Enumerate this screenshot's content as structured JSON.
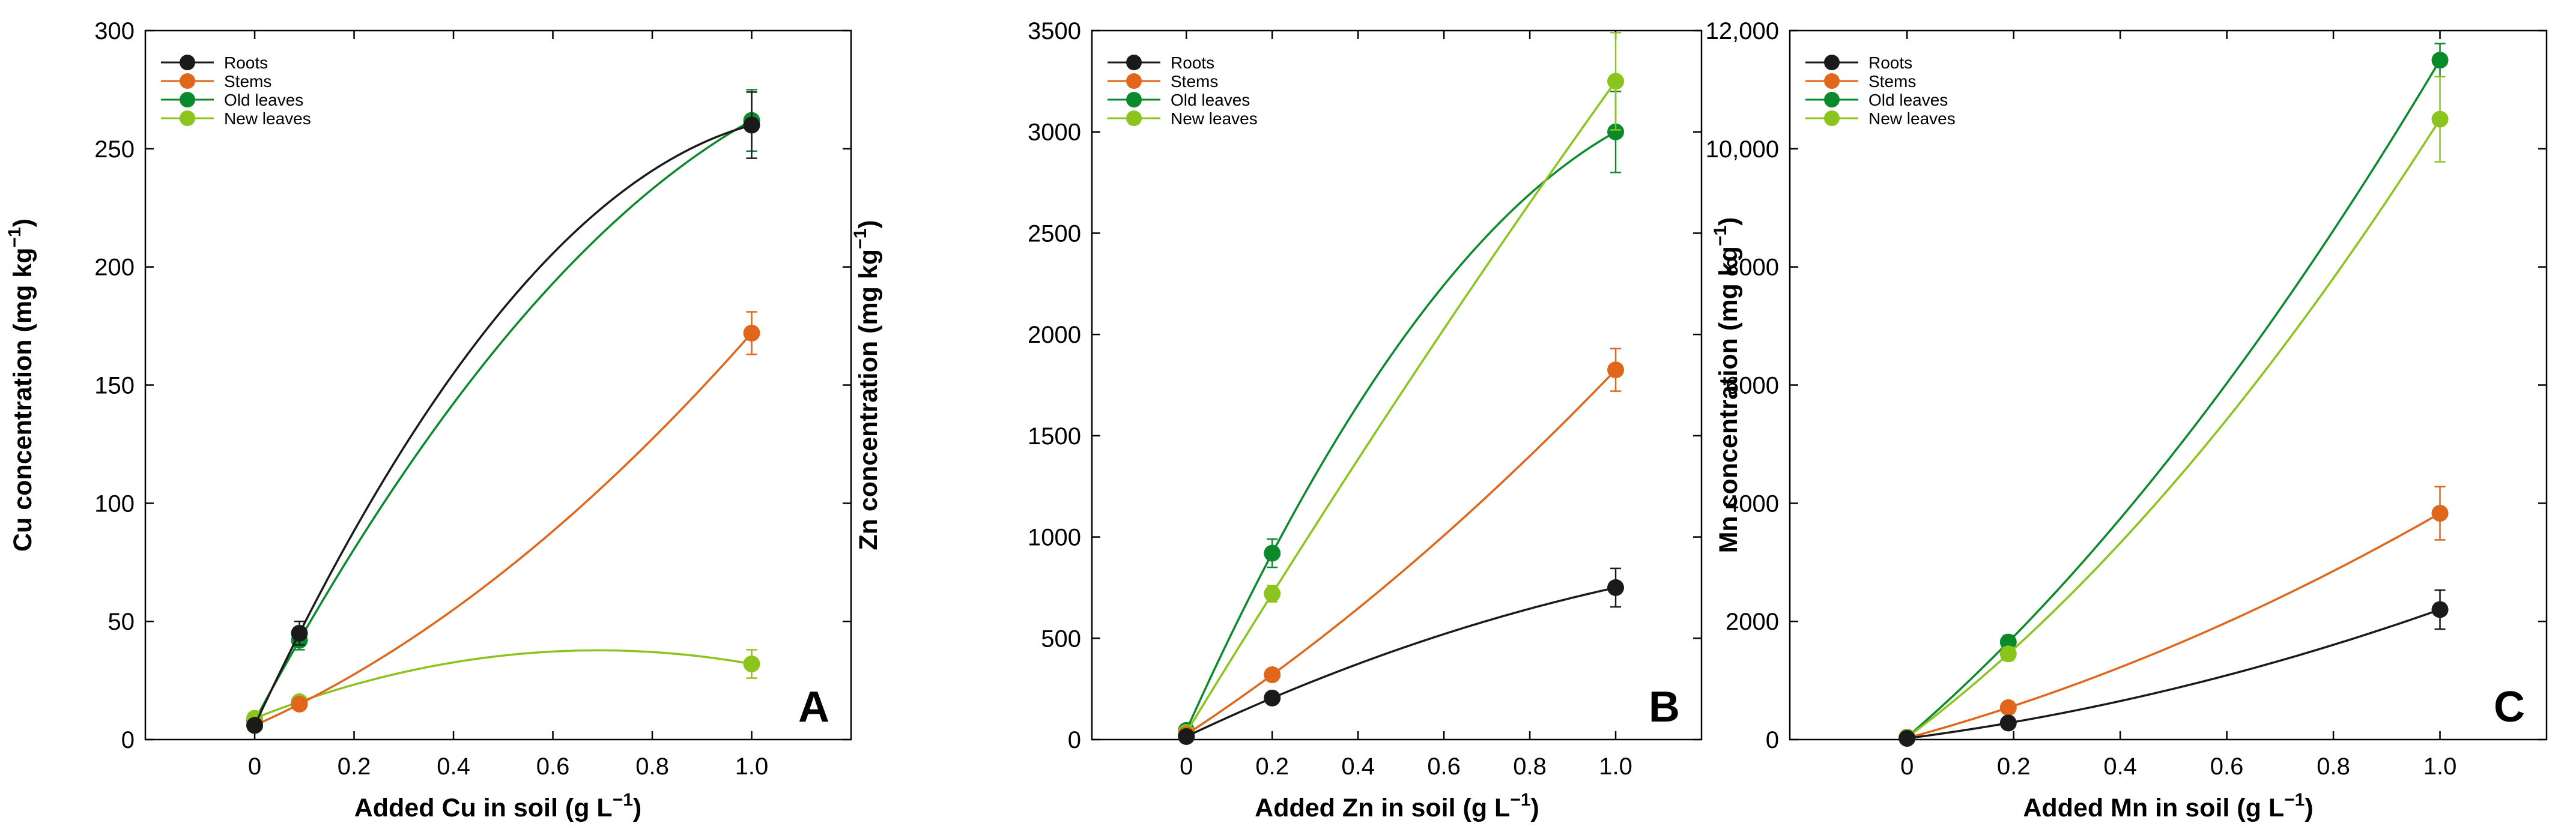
{
  "colors": {
    "Roots": "#1a1a1a",
    "Stems": "#e0661c",
    "Old leaves": "#0a8a2a",
    "New leaves": "#8cc41e"
  },
  "chart_data": [
    {
      "type": "line",
      "panel": "A",
      "xlabel_main": "Added Cu in soil (g L",
      "xlabel_exp": "−1",
      "xlabel_close": ")",
      "ylabel_main": "Cu concentration (mg kg",
      "ylabel_exp": "−1",
      "ylabel_close": ")",
      "xlim": [
        -0.22,
        1.2
      ],
      "ylim": [
        0,
        300
      ],
      "xticks": [
        0,
        0.2,
        0.4,
        0.6,
        0.8,
        1.0
      ],
      "xtick_labels": [
        "0",
        "0.2",
        "0.4",
        "0.6",
        "0.8",
        "1.0"
      ],
      "yticks": [
        0,
        50,
        100,
        150,
        200,
        250,
        300
      ],
      "ytick_labels": [
        "0",
        "50",
        "100",
        "150",
        "200",
        "250",
        "300"
      ],
      "x": [
        0,
        0.09,
        1.0
      ],
      "series": [
        {
          "name": "Roots",
          "values": [
            6,
            45,
            260
          ],
          "errors": [
            1,
            5,
            14
          ]
        },
        {
          "name": "Stems",
          "values": [
            6,
            15,
            172
          ],
          "errors": [
            1,
            2,
            9
          ]
        },
        {
          "name": "Old leaves",
          "values": [
            8,
            42,
            262
          ],
          "errors": [
            1,
            4,
            13
          ]
        },
        {
          "name": "New leaves",
          "values": [
            9,
            16,
            32
          ],
          "errors": [
            1,
            2,
            6
          ]
        }
      ],
      "legend": [
        "Roots",
        "Stems",
        "Old leaves",
        "New leaves"
      ]
    },
    {
      "type": "line",
      "panel": "B",
      "xlabel_main": "Added Zn in soil (g L",
      "xlabel_exp": "−1",
      "xlabel_close": ")",
      "ylabel_main": "Zn concentration (mg kg",
      "ylabel_exp": "−1",
      "ylabel_close": ")",
      "xlim": [
        -0.22,
        1.2
      ],
      "ylim": [
        0,
        3500
      ],
      "xticks": [
        0,
        0.2,
        0.4,
        0.6,
        0.8,
        1.0
      ],
      "xtick_labels": [
        "0",
        "0.2",
        "0.4",
        "0.6",
        "0.8",
        "1.0"
      ],
      "yticks": [
        0,
        500,
        1000,
        1500,
        2000,
        2500,
        3000,
        3500
      ],
      "ytick_labels": [
        "0",
        "500",
        "1000",
        "1500",
        "2000",
        "2500",
        "3000",
        "3500"
      ],
      "x": [
        0,
        0.2,
        1.0
      ],
      "series": [
        {
          "name": "Roots",
          "values": [
            15,
            205,
            750
          ],
          "errors": [
            5,
            20,
            95
          ]
        },
        {
          "name": "Stems",
          "values": [
            25,
            320,
            1825
          ],
          "errors": [
            5,
            25,
            105
          ]
        },
        {
          "name": "Old leaves",
          "values": [
            45,
            920,
            3000
          ],
          "errors": [
            8,
            70,
            200
          ]
        },
        {
          "name": "New leaves",
          "values": [
            35,
            720,
            3250
          ],
          "errors": [
            6,
            40,
            240
          ]
        }
      ],
      "legend": [
        "Roots",
        "Stems",
        "Old leaves",
        "New leaves"
      ]
    },
    {
      "type": "line",
      "panel": "C",
      "xlabel_main": "Added Mn in soil (g L",
      "xlabel_exp": "−1",
      "xlabel_close": ")",
      "ylabel_main": "Mn concentration (mg kg",
      "ylabel_exp": "−1",
      "ylabel_close": ")",
      "xlim": [
        -0.22,
        1.2
      ],
      "ylim": [
        0,
        12000
      ],
      "xticks": [
        0,
        0.2,
        0.4,
        0.6,
        0.8,
        1.0
      ],
      "xtick_labels": [
        "0",
        "0.2",
        "0.4",
        "0.6",
        "0.8",
        "1.0"
      ],
      "yticks": [
        0,
        2000,
        4000,
        6000,
        8000,
        10000,
        12000
      ],
      "ytick_labels": [
        "0",
        "2000",
        "4000",
        "6000",
        "8000",
        "10,000",
        "12,000"
      ],
      "x": [
        0,
        0.19,
        1.0
      ],
      "series": [
        {
          "name": "Roots",
          "values": [
            20,
            280,
            2200
          ],
          "errors": [
            10,
            40,
            330
          ]
        },
        {
          "name": "Stems",
          "values": [
            25,
            540,
            3830
          ],
          "errors": [
            10,
            50,
            450
          ]
        },
        {
          "name": "Old leaves",
          "values": [
            40,
            1650,
            11500
          ],
          "errors": [
            10,
            110,
            280
          ]
        },
        {
          "name": "New leaves",
          "values": [
            35,
            1450,
            10500
          ],
          "errors": [
            10,
            110,
            720
          ]
        }
      ],
      "legend": [
        "Roots",
        "Stems",
        "Old leaves",
        "New leaves"
      ]
    }
  ]
}
